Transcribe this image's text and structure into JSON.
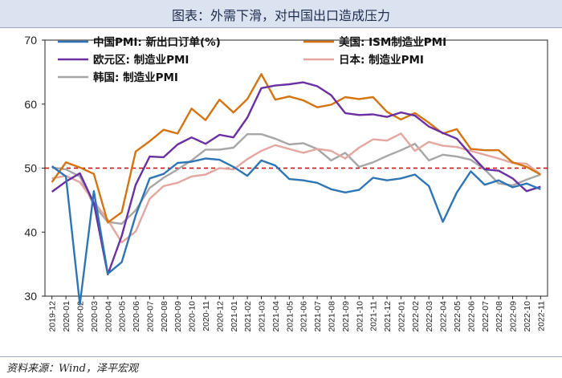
{
  "title": "图表：外需下滑，对中国出口造成压力",
  "source": "资料来源：Wind，泽平宏观",
  "colors": {
    "china": "#2e75b6",
    "ism": "#d4730f",
    "euro": "#6a2fa0",
    "japan": "#e3a6a0",
    "korea": "#a6a6a6",
    "threshold": "#cc0000"
  },
  "chart_data": {
    "type": "line",
    "ylim": [
      30,
      70
    ],
    "yticks": [
      30,
      40,
      50,
      60,
      70
    ],
    "threshold": 50,
    "grid": false,
    "legend": "top",
    "categories": [
      "2019-12",
      "2020-01",
      "2020-02",
      "2020-03",
      "2020-04",
      "2020-05",
      "2020-06",
      "2020-07",
      "2020-08",
      "2020-09",
      "2020-10",
      "2020-11",
      "2020-12",
      "2021-01",
      "2021-02",
      "2021-03",
      "2021-04",
      "2021-05",
      "2021-06",
      "2021-07",
      "2021-08",
      "2021-09",
      "2021-10",
      "2021-11",
      "2021-12",
      "2022-01",
      "2022-02",
      "2022-03",
      "2022-04",
      "2022-05",
      "2022-06",
      "2022-07",
      "2022-08",
      "2022-09",
      "2022-10",
      "2022-11"
    ],
    "series": [
      {
        "key": "china",
        "name": "中国PMI: 新出口订单(%)",
        "values": [
          50.3,
          48.7,
          28.7,
          46.4,
          33.5,
          35.3,
          42.6,
          48.4,
          49.1,
          50.8,
          51.0,
          51.5,
          51.3,
          50.2,
          48.8,
          51.2,
          50.4,
          48.3,
          48.1,
          47.7,
          46.7,
          46.2,
          46.6,
          48.5,
          48.1,
          48.4,
          49.0,
          47.2,
          41.6,
          46.2,
          49.5,
          47.4,
          48.1,
          47.0,
          47.6,
          46.7
        ]
      },
      {
        "key": "ism",
        "name": "美国: ISM制造业PMI",
        "values": [
          47.8,
          50.9,
          50.1,
          49.1,
          41.5,
          43.1,
          52.6,
          54.2,
          56.0,
          55.4,
          59.3,
          57.5,
          60.7,
          58.7,
          60.8,
          64.7,
          60.7,
          61.2,
          60.6,
          59.5,
          59.9,
          61.1,
          60.8,
          61.1,
          58.8,
          57.6,
          58.6,
          57.1,
          55.4,
          56.1,
          53.0,
          52.8,
          52.8,
          50.9,
          50.2,
          49.0
        ]
      },
      {
        "key": "euro",
        "name": "欧元区: 制造业PMI",
        "values": [
          46.3,
          47.9,
          49.2,
          44.5,
          33.4,
          39.4,
          47.4,
          51.8,
          51.7,
          53.7,
          54.8,
          53.8,
          55.2,
          54.8,
          57.9,
          62.5,
          62.9,
          63.1,
          63.4,
          62.8,
          61.4,
          58.6,
          58.3,
          58.4,
          58.0,
          58.7,
          58.2,
          56.5,
          55.5,
          54.6,
          52.1,
          49.8,
          49.6,
          48.4,
          46.4,
          47.1
        ]
      },
      {
        "key": "japan",
        "name": "日本: 制造业PMI",
        "values": [
          48.4,
          48.8,
          47.8,
          44.8,
          41.9,
          38.4,
          40.1,
          45.2,
          47.2,
          47.7,
          48.7,
          49.0,
          50.0,
          49.8,
          51.4,
          52.7,
          53.6,
          53.0,
          52.4,
          53.0,
          52.7,
          51.5,
          53.2,
          54.5,
          54.3,
          55.4,
          52.7,
          54.1,
          53.5,
          53.3,
          52.7,
          52.1,
          51.5,
          50.8,
          50.7,
          49.0
        ]
      },
      {
        "key": "korea",
        "name": "韩国: 制造业PMI",
        "values": [
          50.1,
          49.8,
          48.7,
          44.2,
          41.6,
          41.3,
          43.4,
          46.9,
          48.5,
          49.8,
          51.2,
          52.9,
          52.9,
          53.2,
          55.3,
          55.3,
          54.6,
          53.7,
          53.9,
          53.0,
          51.2,
          52.4,
          50.2,
          50.9,
          51.9,
          52.8,
          53.8,
          51.2,
          52.1,
          51.8,
          51.3,
          49.8,
          47.6,
          47.3,
          48.2,
          49.0
        ]
      }
    ]
  }
}
